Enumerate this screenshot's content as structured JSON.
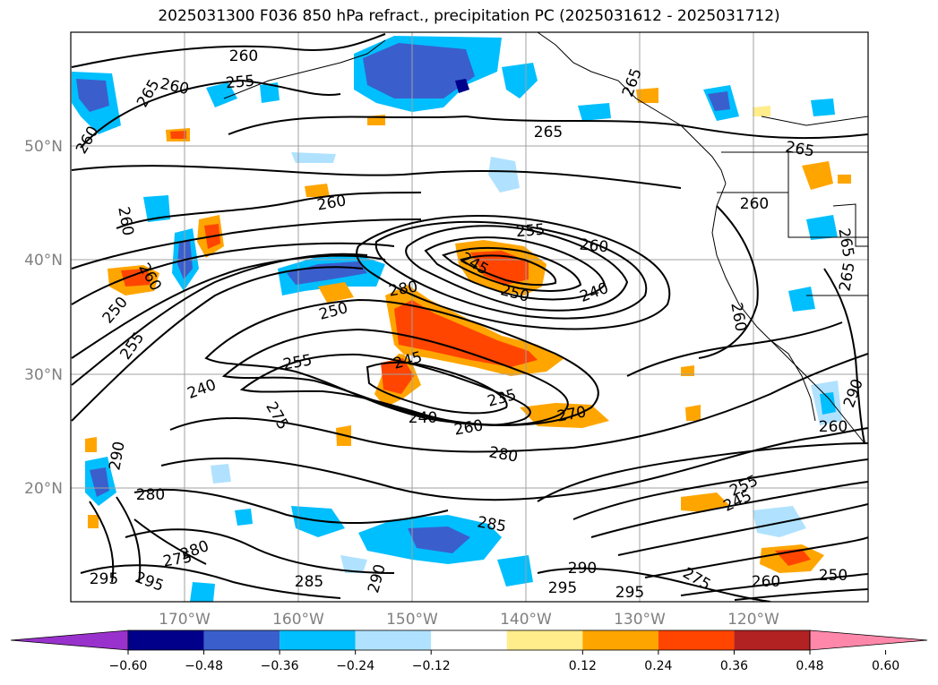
{
  "title": "2025031300 F036 850 hPa refract., precipitation PC (2025031612 - 2025031712)",
  "lat_labels": [
    "50°N",
    "40°N",
    "30°N",
    "20°N"
  ],
  "lon_labels": [
    "170°W",
    "160°W",
    "150°W",
    "140°W",
    "130°W",
    "120°W"
  ],
  "colorbar": {
    "ticks": [
      "−0.60",
      "−0.48",
      "−0.36",
      "−0.24",
      "−0.12",
      "0.12",
      "0.24",
      "0.36",
      "0.48",
      "0.60"
    ],
    "colors": [
      "#9932cc",
      "#00008b",
      "#3a5fcd",
      "#00bfff",
      "#b0e2ff",
      "#ffffff",
      "#ffec8b",
      "#ffa500",
      "#ff4500",
      "#b22222",
      "#ff88aa"
    ]
  },
  "contour_labels": [
    "260",
    "255",
    "265",
    "260",
    "265",
    "260",
    "265",
    "260",
    "260",
    "260",
    "255",
    "260",
    "245",
    "250",
    "240",
    "265",
    "250",
    "255",
    "260",
    "250",
    "280",
    "255",
    "245",
    "235",
    "240",
    "260",
    "270",
    "275",
    "280",
    "290",
    "280",
    "285",
    "275",
    "280",
    "295",
    "295",
    "285",
    "290",
    "295",
    "295",
    "275",
    "260",
    "250",
    "245",
    "255",
    "260",
    "265",
    "265",
    "240",
    "260",
    "290",
    "290"
  ]
}
